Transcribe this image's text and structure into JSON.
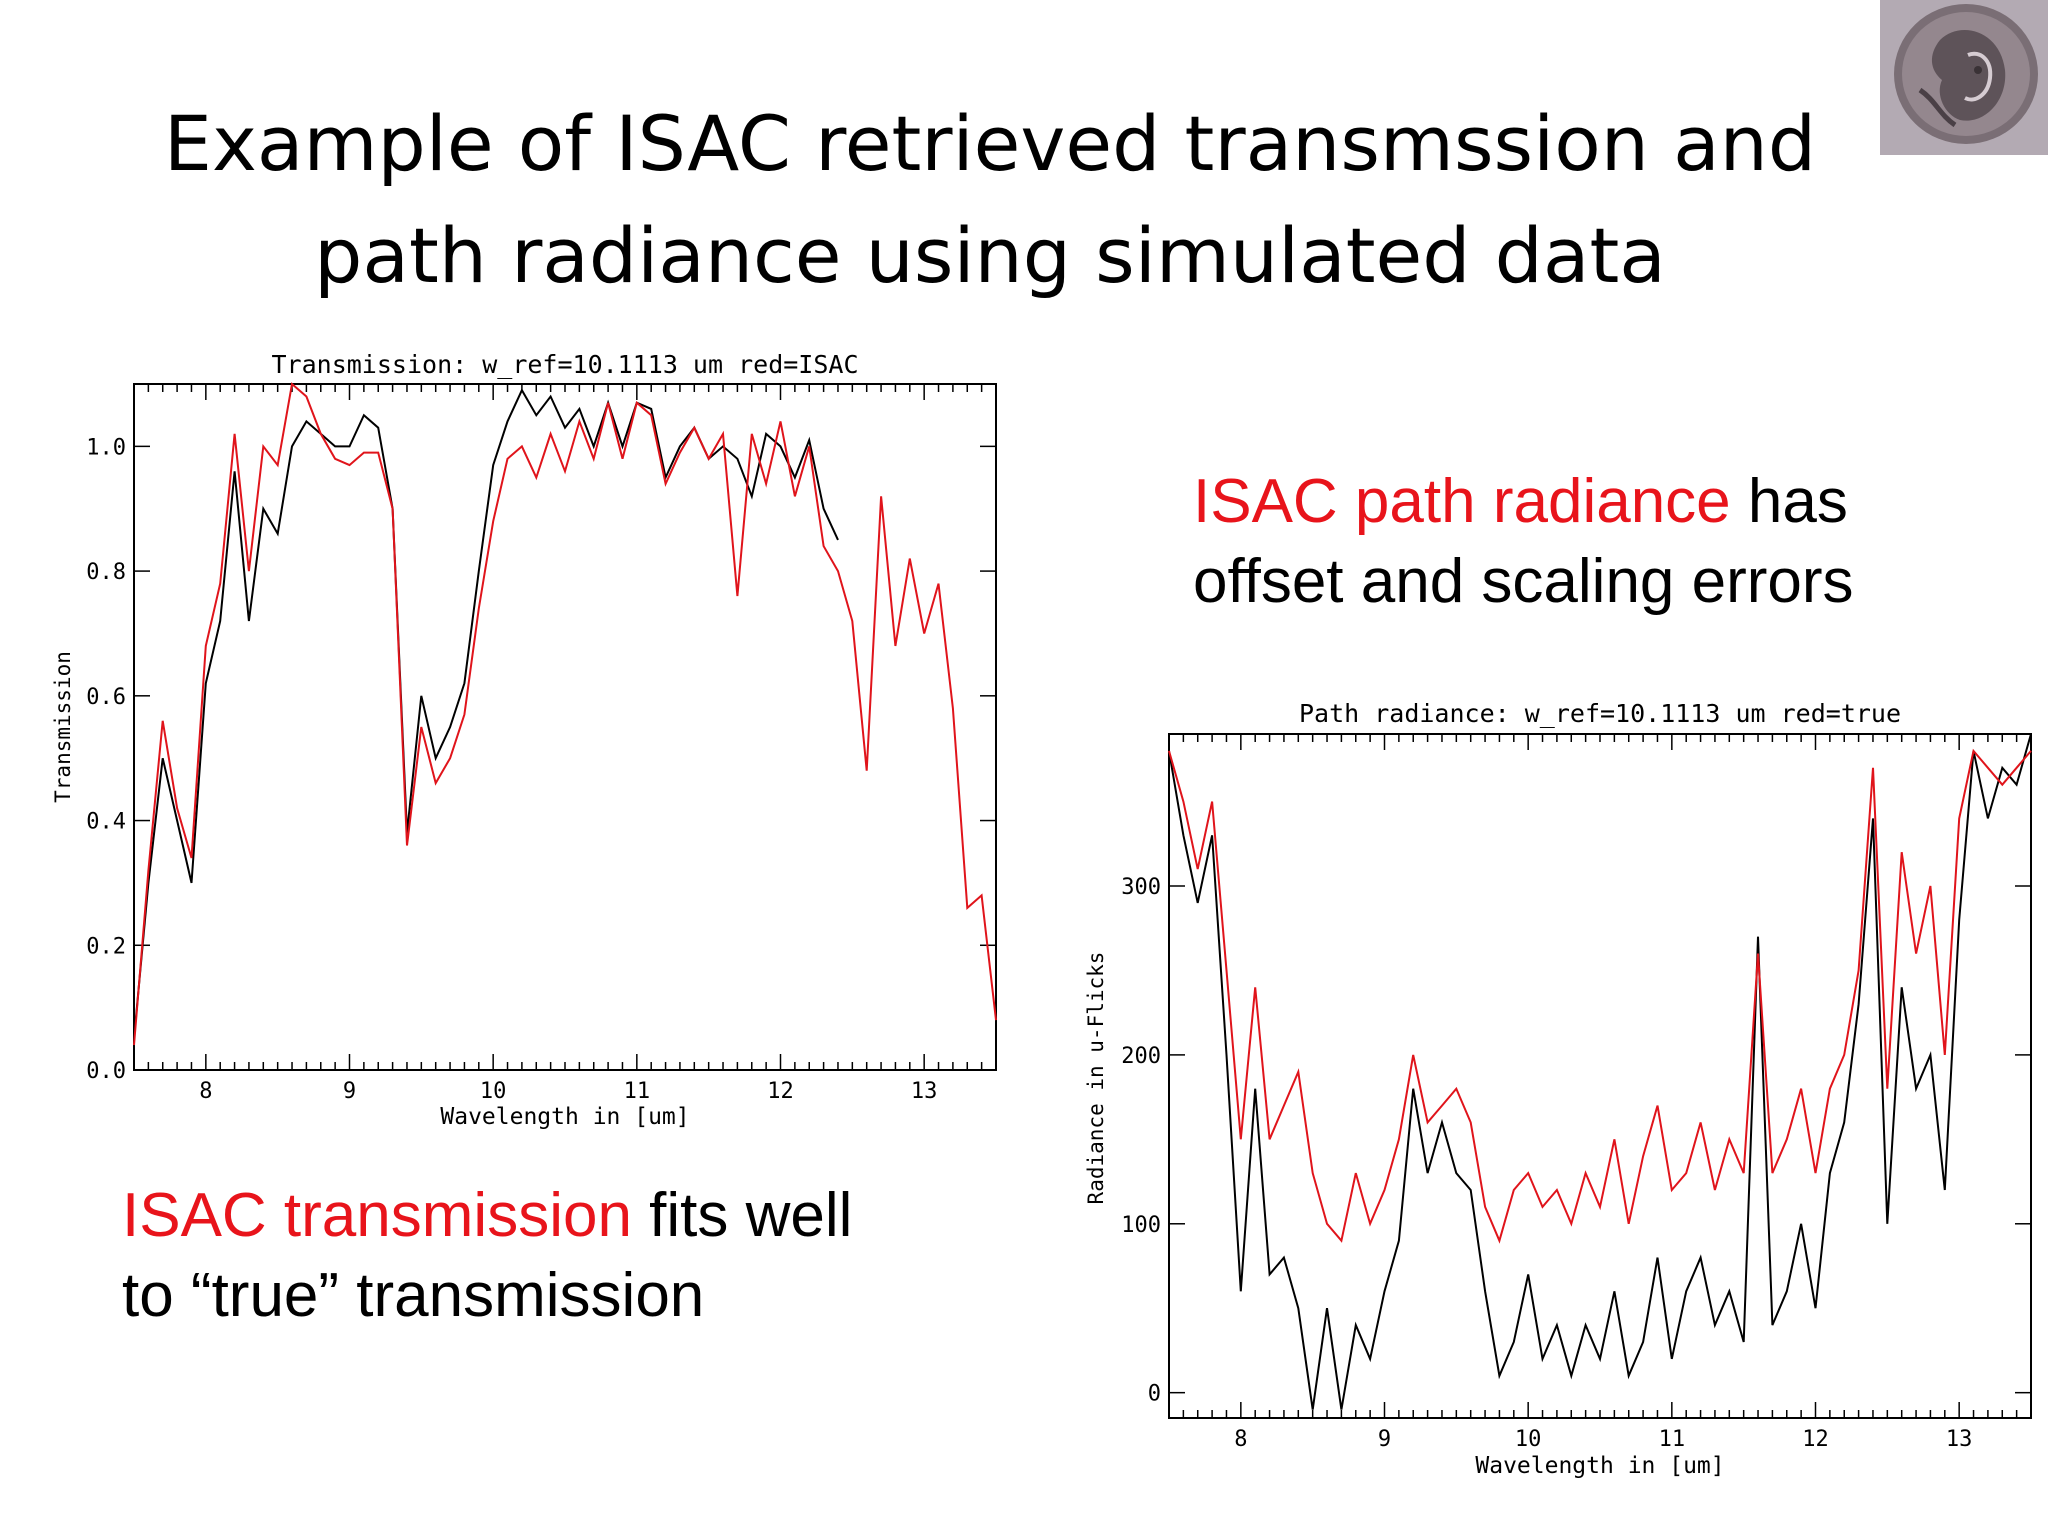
{
  "slide": {
    "title_line1": "Example of ISAC retrieved transmssion and",
    "title_line2": "path radiance using simulated data",
    "caption_right": {
      "red_part": "ISAC path radiance",
      "rest_line1": " has",
      "line2": "offset and scaling errors"
    },
    "caption_left": {
      "red_part": "ISAC transmission",
      "rest_line1": " fits well",
      "line2": "to “true” transmission"
    }
  },
  "chart_data": [
    {
      "type": "line",
      "title": "Transmission: w_ref=10.1113 um red=ISAC",
      "xlabel": "Wavelength in [um]",
      "ylabel": "Transmission",
      "xlim": [
        7.5,
        13.5
      ],
      "ylim": [
        0.0,
        1.1
      ],
      "xticks": [
        8,
        9,
        10,
        11,
        12,
        13
      ],
      "xtick_labels": [
        "8",
        "9",
        "10",
        "11",
        "12",
        "13"
      ],
      "yticks": [
        0.0,
        0.2,
        0.4,
        0.6,
        0.8,
        1.0
      ],
      "ytick_labels": [
        "0.0",
        "0.2",
        "0.4",
        "0.6",
        "0.8",
        "1.0"
      ],
      "series": [
        {
          "color": "#000000",
          "x": [
            7.5,
            7.6,
            7.7,
            7.8,
            7.9,
            8.0,
            8.1,
            8.2,
            8.3,
            8.4,
            8.5,
            8.6,
            8.7,
            8.8,
            8.9,
            9.0,
            9.1,
            9.2,
            9.3,
            9.4,
            9.5,
            9.6,
            9.7,
            9.8,
            9.9,
            10.0,
            10.1,
            10.2,
            10.3,
            10.4,
            10.5,
            10.6,
            10.7,
            10.8,
            10.9,
            11.0,
            11.1,
            11.2,
            11.3,
            11.4,
            11.5,
            11.6,
            11.7,
            11.8,
            11.9,
            12.0,
            12.1,
            12.2,
            12.3,
            12.4
          ],
          "y": [
            0.05,
            0.3,
            0.5,
            0.4,
            0.3,
            0.62,
            0.72,
            0.96,
            0.72,
            0.9,
            0.86,
            1.0,
            1.04,
            1.02,
            1.0,
            1.0,
            1.05,
            1.03,
            0.9,
            0.38,
            0.6,
            0.5,
            0.55,
            0.62,
            0.8,
            0.97,
            1.04,
            1.09,
            1.05,
            1.08,
            1.03,
            1.06,
            1.0,
            1.07,
            1.0,
            1.07,
            1.06,
            0.95,
            1.0,
            1.03,
            0.98,
            1.0,
            0.98,
            0.92,
            1.02,
            1.0,
            0.95,
            1.01,
            0.9,
            0.85
          ]
        },
        {
          "color": "#e0141b",
          "x": [
            7.5,
            7.6,
            7.7,
            7.8,
            7.9,
            8.0,
            8.1,
            8.2,
            8.3,
            8.4,
            8.5,
            8.6,
            8.7,
            8.8,
            8.9,
            9.0,
            9.1,
            9.2,
            9.3,
            9.4,
            9.5,
            9.6,
            9.7,
            9.8,
            9.9,
            10.0,
            10.1,
            10.2,
            10.3,
            10.4,
            10.5,
            10.6,
            10.7,
            10.8,
            10.9,
            11.0,
            11.1,
            11.2,
            11.3,
            11.4,
            11.5,
            11.6,
            11.7,
            11.8,
            11.9,
            12.0,
            12.1,
            12.2,
            12.3,
            12.4,
            12.5,
            12.6,
            12.7,
            12.8,
            12.9,
            13.0,
            13.1,
            13.2,
            13.3,
            13.4,
            13.5
          ],
          "y": [
            0.04,
            0.32,
            0.56,
            0.42,
            0.34,
            0.68,
            0.78,
            1.02,
            0.8,
            1.0,
            0.97,
            1.1,
            1.08,
            1.02,
            0.98,
            0.97,
            0.99,
            0.99,
            0.9,
            0.36,
            0.55,
            0.46,
            0.5,
            0.57,
            0.74,
            0.88,
            0.98,
            1.0,
            0.95,
            1.02,
            0.96,
            1.04,
            0.98,
            1.07,
            0.98,
            1.07,
            1.05,
            0.94,
            0.99,
            1.03,
            0.98,
            1.02,
            0.76,
            1.02,
            0.94,
            1.04,
            0.92,
            1.0,
            0.84,
            0.8,
            0.72,
            0.48,
            0.92,
            0.68,
            0.82,
            0.7,
            0.78,
            0.58,
            0.26,
            0.28,
            0.08
          ]
        }
      ]
    },
    {
      "type": "line",
      "title": "Path radiance: w_ref=10.1113 um red=true",
      "xlabel": "Wavelength in [um]",
      "ylabel": "Radiance in u-Flicks",
      "xlim": [
        7.5,
        13.5
      ],
      "ylim": [
        -15,
        390
      ],
      "xticks": [
        8,
        9,
        10,
        11,
        12,
        13
      ],
      "xtick_labels": [
        "8",
        "9",
        "10",
        "11",
        "12",
        "13"
      ],
      "yticks": [
        0,
        100,
        200,
        300
      ],
      "ytick_labels": [
        "0",
        "100",
        "200",
        "300"
      ],
      "series": [
        {
          "color": "#000000",
          "x": [
            7.5,
            7.6,
            7.7,
            7.8,
            7.9,
            8.0,
            8.1,
            8.2,
            8.3,
            8.4,
            8.5,
            8.6,
            8.7,
            8.8,
            8.9,
            9.0,
            9.1,
            9.2,
            9.3,
            9.4,
            9.5,
            9.6,
            9.7,
            9.8,
            9.9,
            10.0,
            10.1,
            10.2,
            10.3,
            10.4,
            10.5,
            10.6,
            10.7,
            10.8,
            10.9,
            11.0,
            11.1,
            11.2,
            11.3,
            11.4,
            11.5,
            11.6,
            11.7,
            11.8,
            11.9,
            12.0,
            12.1,
            12.2,
            12.3,
            12.4,
            12.5,
            12.6,
            12.7,
            12.8,
            12.9,
            13.0,
            13.1,
            13.2,
            13.3,
            13.4,
            13.5
          ],
          "y": [
            380,
            330,
            290,
            330,
            200,
            60,
            180,
            70,
            80,
            50,
            -10,
            50,
            -10,
            40,
            20,
            60,
            90,
            180,
            130,
            160,
            130,
            120,
            60,
            10,
            30,
            70,
            20,
            40,
            10,
            40,
            20,
            60,
            10,
            30,
            80,
            20,
            60,
            80,
            40,
            60,
            30,
            270,
            40,
            60,
            100,
            50,
            130,
            160,
            230,
            340,
            100,
            240,
            180,
            200,
            120,
            280,
            380,
            340,
            370,
            360,
            390
          ]
        },
        {
          "color": "#e0141b",
          "x": [
            7.5,
            7.6,
            7.7,
            7.8,
            7.9,
            8.0,
            8.1,
            8.2,
            8.3,
            8.4,
            8.5,
            8.6,
            8.7,
            8.8,
            8.9,
            9.0,
            9.1,
            9.2,
            9.3,
            9.4,
            9.5,
            9.6,
            9.7,
            9.8,
            9.9,
            10.0,
            10.1,
            10.2,
            10.3,
            10.4,
            10.5,
            10.6,
            10.7,
            10.8,
            10.9,
            11.0,
            11.1,
            11.2,
            11.3,
            11.4,
            11.5,
            11.6,
            11.7,
            11.8,
            11.9,
            12.0,
            12.1,
            12.2,
            12.3,
            12.4,
            12.5,
            12.6,
            12.7,
            12.8,
            12.9,
            13.0,
            13.1,
            13.2,
            13.3,
            13.4,
            13.5
          ],
          "y": [
            380,
            350,
            310,
            350,
            250,
            150,
            240,
            150,
            170,
            190,
            130,
            100,
            90,
            130,
            100,
            120,
            150,
            200,
            160,
            170,
            180,
            160,
            110,
            90,
            120,
            130,
            110,
            120,
            100,
            130,
            110,
            150,
            100,
            140,
            170,
            120,
            130,
            160,
            120,
            150,
            130,
            260,
            130,
            150,
            180,
            130,
            180,
            200,
            250,
            370,
            180,
            320,
            260,
            300,
            200,
            340,
            380,
            370,
            360,
            370,
            380
          ]
        }
      ]
    }
  ]
}
